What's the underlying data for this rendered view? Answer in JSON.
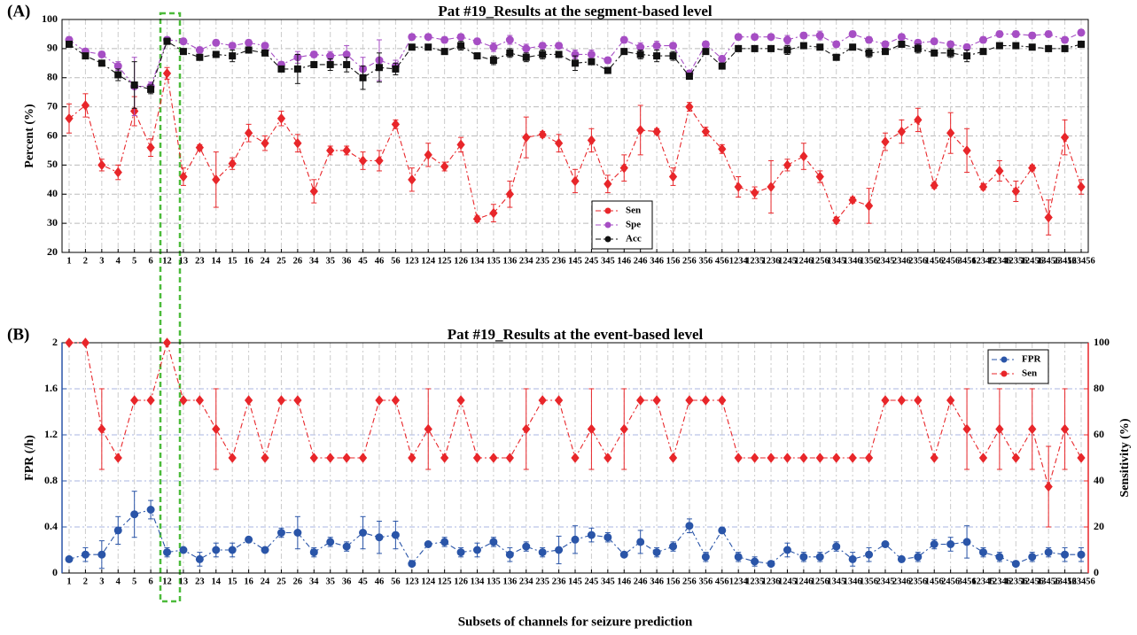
{
  "chart_data": [
    {
      "type": "line",
      "label": "(A)",
      "title": "Pat #19_Results at the segment-based level",
      "ylabel": "Percent (%)",
      "grid": true,
      "legend": "lower center",
      "categories": [
        "1",
        "2",
        "3",
        "4",
        "5",
        "6",
        "12",
        "13",
        "23",
        "14",
        "15",
        "16",
        "24",
        "25",
        "26",
        "34",
        "35",
        "36",
        "45",
        "46",
        "56",
        "123",
        "124",
        "125",
        "126",
        "134",
        "135",
        "136",
        "234",
        "235",
        "236",
        "145",
        "245",
        "345",
        "146",
        "246",
        "346",
        "156",
        "256",
        "356",
        "456",
        "1234",
        "1235",
        "1236",
        "1245",
        "1246",
        "1256",
        "1345",
        "1346",
        "1356",
        "2345",
        "2346",
        "2356",
        "1456",
        "2456",
        "3456",
        "12345",
        "12346",
        "12356",
        "12456",
        "13456",
        "23456",
        "123456"
      ],
      "ylim": [
        20,
        100
      ],
      "yticks": [
        20,
        30,
        40,
        50,
        60,
        70,
        80,
        90,
        100
      ],
      "series": [
        {
          "name": "Sen",
          "color": "#e8262a",
          "marker": "diamond",
          "dash": "6 3 2 3",
          "values": [
            66,
            70.5,
            50,
            47.5,
            68.5,
            56,
            81.5,
            46,
            56,
            45,
            50.5,
            61,
            57.5,
            66,
            57.5,
            41,
            55,
            55,
            51.5,
            51.5,
            64,
            45,
            53.5,
            49.5,
            57,
            31.5,
            33.5,
            40,
            59.5,
            60.5,
            57.5,
            44.5,
            58.5,
            43.5,
            49,
            62,
            61.5,
            46,
            70,
            61.5,
            55.5,
            42.5,
            40.5,
            42.5,
            50,
            53,
            46,
            31,
            38,
            36,
            58,
            61.5,
            65.5,
            43,
            61,
            55,
            42.5,
            48,
            41,
            49,
            32,
            59.5,
            42.5
          ],
          "errors": [
            5,
            4,
            2,
            2.5,
            5,
            3,
            2,
            3,
            1,
            9.5,
            2,
            3,
            2.5,
            2.5,
            3,
            4,
            1.5,
            1.5,
            3,
            3.5,
            1.5,
            4,
            4,
            1.5,
            2.5,
            1,
            3,
            4.5,
            7,
            1,
            3,
            4,
            4,
            3,
            4.5,
            8.5,
            1,
            3,
            1.5,
            1.5,
            1.5,
            3.5,
            2,
            9,
            2,
            4.5,
            2,
            1,
            1,
            6,
            3,
            4,
            4,
            1,
            7,
            7.5,
            1,
            3.5,
            3.5,
            1,
            6,
            6,
            2.5
          ]
        },
        {
          "name": "Spe",
          "color": "#a64ec4",
          "marker": "circle",
          "dash": "6 3 2 3",
          "values": [
            93,
            89,
            88,
            84,
            77,
            77,
            93,
            92.5,
            89.5,
            92,
            91,
            92,
            91,
            84.5,
            87,
            88,
            87.5,
            88,
            83,
            86,
            84,
            94,
            94,
            93,
            94,
            92.5,
            90.5,
            93,
            90,
            91,
            91,
            88,
            88,
            86,
            93,
            90.5,
            91,
            91,
            81.5,
            91.5,
            86.5,
            94,
            94,
            94,
            93,
            94.5,
            94.5,
            91.5,
            95,
            93,
            91.5,
            94,
            92,
            92.5,
            91.5,
            90.5,
            93,
            95,
            95,
            94.5,
            95,
            93,
            95.5
          ],
          "errors": [
            1,
            1,
            1,
            1.5,
            10,
            1.5,
            1,
            1,
            1,
            1,
            1,
            1,
            1,
            1,
            2,
            1,
            1.5,
            3,
            4,
            7,
            2,
            1,
            1,
            1,
            1,
            1,
            1.5,
            1.5,
            1.5,
            1,
            1,
            1.5,
            1.5,
            1,
            1,
            1.5,
            1.5,
            1,
            1,
            1,
            1,
            1,
            1,
            1,
            1.5,
            1,
            1.5,
            1,
            1,
            1,
            1,
            1,
            1,
            1,
            1,
            1,
            1,
            1,
            1,
            1,
            1,
            1,
            1
          ]
        },
        {
          "name": "Acc",
          "color": "#111111",
          "marker": "square",
          "dash": "6 3 2 3",
          "values": [
            91.5,
            87.5,
            85,
            81,
            77.5,
            76,
            92.5,
            89,
            87,
            88,
            87.5,
            89.5,
            88.5,
            83,
            83,
            84.5,
            84.5,
            84.5,
            80,
            83.5,
            83,
            90.5,
            90.5,
            89,
            91,
            87.5,
            86,
            88.5,
            87,
            88,
            88,
            85,
            85.5,
            82.5,
            89,
            88,
            87.5,
            87.5,
            80.5,
            89,
            84,
            90,
            90,
            90,
            89.5,
            91,
            90.5,
            87,
            90.5,
            88.5,
            89,
            91.5,
            90,
            88.5,
            88.5,
            87.5,
            89,
            91,
            91,
            90.5,
            90,
            90,
            91.5
          ],
          "errors": [
            1,
            1,
            1,
            2,
            8,
            1.5,
            1,
            1,
            1,
            1,
            2,
            1,
            1,
            1,
            5,
            1,
            2,
            2.5,
            4,
            5,
            2,
            1,
            1,
            1,
            1.5,
            1,
            1.5,
            1.5,
            1.5,
            1.5,
            1,
            2.5,
            1,
            1,
            1,
            1.5,
            2,
            1.5,
            1,
            1,
            1,
            1,
            1,
            1,
            1.5,
            1,
            1,
            1,
            1,
            1.5,
            1,
            1,
            1.5,
            1,
            1.5,
            2,
            1,
            1,
            1,
            1,
            1,
            1,
            1
          ]
        }
      ]
    },
    {
      "type": "line",
      "label": "(B)",
      "title": "Pat #19_Results at the event-based level",
      "ylabel": "FPR (/h)",
      "y2label": "Sensitivity (%)",
      "xlabel": "Subsets of channels for seizure prediction",
      "grid": true,
      "legend": "upper right",
      "categories": [
        "1",
        "2",
        "3",
        "4",
        "5",
        "6",
        "12",
        "13",
        "23",
        "14",
        "15",
        "16",
        "24",
        "25",
        "26",
        "34",
        "35",
        "36",
        "45",
        "46",
        "56",
        "123",
        "124",
        "125",
        "126",
        "134",
        "135",
        "136",
        "234",
        "235",
        "236",
        "145",
        "245",
        "345",
        "146",
        "246",
        "346",
        "156",
        "256",
        "356",
        "456",
        "1234",
        "1235",
        "1236",
        "1245",
        "1246",
        "1256",
        "1345",
        "1346",
        "1356",
        "2345",
        "2346",
        "2356",
        "1456",
        "2456",
        "3456",
        "12345",
        "12346",
        "12356",
        "12456",
        "13456",
        "23456",
        "123456"
      ],
      "ylim": [
        0,
        2
      ],
      "yticks": [
        0,
        0.4,
        0.8,
        1.2,
        1.6,
        2
      ],
      "y2lim": [
        0,
        100
      ],
      "y2ticks": [
        0,
        20,
        40,
        60,
        80,
        100
      ],
      "series": [
        {
          "name": "FPR",
          "color": "#2a55a8",
          "marker": "circle",
          "dash": "6 3 2 3",
          "values": [
            0.12,
            0.16,
            0.16,
            0.37,
            0.51,
            0.55,
            0.18,
            0.2,
            0.12,
            0.2,
            0.2,
            0.29,
            0.2,
            0.35,
            0.35,
            0.18,
            0.27,
            0.23,
            0.35,
            0.31,
            0.33,
            0.08,
            0.25,
            0.27,
            0.18,
            0.2,
            0.27,
            0.16,
            0.23,
            0.18,
            0.2,
            0.29,
            0.33,
            0.31,
            0.16,
            0.27,
            0.18,
            0.23,
            0.41,
            0.14,
            0.37,
            0.14,
            0.1,
            0.08,
            0.2,
            0.14,
            0.14,
            0.23,
            0.12,
            0.16,
            0.25,
            0.12,
            0.14,
            0.25,
            0.25,
            0.27,
            0.18,
            0.14,
            0.08,
            0.14,
            0.18,
            0.16,
            0.16
          ],
          "errors": [
            0.02,
            0.06,
            0.12,
            0.12,
            0.2,
            0.08,
            0.04,
            0.02,
            0.06,
            0.06,
            0.06,
            0.02,
            0.02,
            0.04,
            0.14,
            0.04,
            0.04,
            0.04,
            0.14,
            0.14,
            0.12,
            0.02,
            0.02,
            0.04,
            0.04,
            0.06,
            0.04,
            0.06,
            0.04,
            0.04,
            0.12,
            0.12,
            0.06,
            0.04,
            0.02,
            0.1,
            0.04,
            0.04,
            0.06,
            0.04,
            0.02,
            0.04,
            0.04,
            0.02,
            0.06,
            0.04,
            0.04,
            0.04,
            0.06,
            0.06,
            0.02,
            0.02,
            0.04,
            0.04,
            0.06,
            0.14,
            0.04,
            0.04,
            0.02,
            0.04,
            0.04,
            0.06,
            0.06
          ]
        },
        {
          "name": "Sen",
          "color": "#e8262a",
          "marker": "diamond",
          "dash": "6 3 2 3",
          "axis": "y2",
          "values": [
            100,
            100,
            62.5,
            50,
            75,
            75,
            100,
            75,
            75,
            62.5,
            50,
            75,
            50,
            75,
            75,
            50,
            50,
            50,
            50,
            75,
            75,
            50,
            62.5,
            50,
            75,
            50,
            50,
            50,
            62.5,
            75,
            75,
            50,
            62.5,
            50,
            62.5,
            75,
            75,
            50,
            75,
            75,
            75,
            50,
            50,
            50,
            50,
            50,
            50,
            50,
            50,
            50,
            75,
            75,
            75,
            50,
            75,
            62.5,
            50,
            62.5,
            50,
            62.5,
            37.5,
            62.5,
            50
          ],
          "errors": [
            0,
            0,
            17.5,
            0,
            0,
            0,
            0,
            0,
            0,
            17.5,
            0,
            0,
            0,
            0,
            0,
            0,
            0,
            0,
            0,
            0,
            0,
            0,
            17.5,
            0,
            0,
            0,
            0,
            0,
            17.5,
            0,
            0,
            0,
            17.5,
            0,
            17.5,
            0,
            0,
            0,
            0,
            0,
            0,
            0,
            0,
            0,
            0,
            0,
            0,
            0,
            0,
            0,
            0,
            0,
            0,
            0,
            0,
            17.5,
            0,
            17.5,
            0,
            17.5,
            17.5,
            17.5,
            0
          ]
        }
      ]
    }
  ]
}
